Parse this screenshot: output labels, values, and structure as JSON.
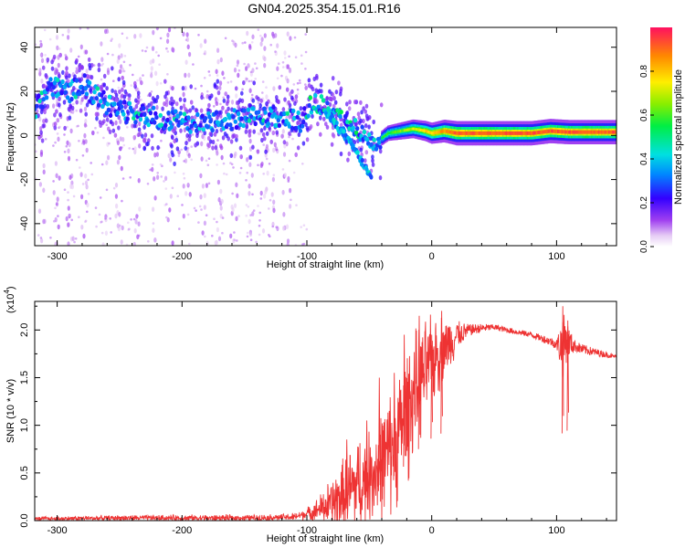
{
  "title": "GN04.2025.354.15.01.R16",
  "chart_data": [
    {
      "type": "heatmap",
      "name": "spectrogram",
      "xlabel": "Height of straight line (km)",
      "ylabel": "Frequency (Hz)",
      "xlim": [
        -318,
        148
      ],
      "ylim": [
        -50,
        49
      ],
      "xticks": [
        -300,
        -200,
        -100,
        0,
        100
      ],
      "yticks": [
        -40,
        -20,
        0,
        20,
        40
      ],
      "xticklabels": [
        "-300",
        "-200",
        "-100",
        "0",
        "100"
      ],
      "yticklabels": [
        "-40",
        "-20",
        "0",
        "20",
        "40"
      ],
      "ridge": {
        "x": [
          -318,
          -305,
          -290,
          -280,
          -270,
          -255,
          -240,
          -220,
          -200,
          -180,
          -160,
          -140,
          -120,
          -105,
          -95,
          -85,
          -75,
          -65,
          -55,
          -48,
          -42,
          -35,
          -25,
          -15,
          -5,
          0,
          10,
          20,
          40,
          60,
          80,
          95,
          110,
          130,
          148
        ],
        "y": [
          12,
          22,
          20,
          24,
          18,
          12,
          10,
          8,
          6,
          6,
          7,
          8,
          9,
          6,
          15,
          14,
          8,
          4,
          2,
          -3,
          -2,
          1,
          2,
          3,
          2,
          1,
          2,
          1,
          1,
          1,
          1,
          2,
          1.5,
          1.5,
          1.5
        ]
      },
      "branch": {
        "x": [
          -85,
          -78,
          -70,
          -62,
          -56,
          -52,
          -48
        ],
        "y": [
          10,
          6,
          0,
          -6,
          -12,
          -16,
          -20
        ]
      },
      "colorbar": {
        "label": "Normalized spectral amplitude",
        "range": [
          0,
          1
        ],
        "ticks": [
          0.0,
          0.2,
          0.4,
          0.6,
          0.8
        ],
        "ticklabels": [
          "0.0",
          "0.2",
          "0.4",
          "0.6",
          "0.8"
        ]
      }
    },
    {
      "type": "line",
      "name": "snr",
      "xlabel": "Height of straight line (km)",
      "ylabel": "SNR (10 * v/v)",
      "ylabel_scale": "(x10",
      "ylabel_scale_exp": "4",
      "ylabel_scale_close": ")",
      "xlim": [
        -318,
        148
      ],
      "ylim": [
        0,
        2.3
      ],
      "xticks": [
        -300,
        -200,
        -100,
        0,
        100
      ],
      "yticks": [
        0.0,
        0.5,
        1.0,
        1.5,
        2.0
      ],
      "xticklabels": [
        "-300",
        "-200",
        "-100",
        "0",
        "100"
      ],
      "yticklabels": [
        "0.0",
        "0.5",
        "1.0",
        "1.5",
        "2.0"
      ],
      "color": "#ee3333",
      "envelope": {
        "x": [
          -318,
          -250,
          -200,
          -150,
          -110,
          -95,
          -80,
          -70,
          -60,
          -50,
          -40,
          -30,
          -20,
          -10,
          0,
          10,
          20,
          30,
          40,
          50,
          60,
          80,
          95,
          100,
          105,
          108,
          112,
          120,
          130,
          140,
          148
        ],
        "y": [
          0.02,
          0.03,
          0.03,
          0.03,
          0.04,
          0.1,
          0.2,
          0.3,
          0.42,
          0.5,
          0.65,
          0.85,
          1.2,
          1.5,
          1.72,
          1.85,
          1.95,
          2.0,
          2.02,
          2.03,
          2.0,
          1.95,
          1.88,
          1.85,
          1.83,
          1.9,
          1.85,
          1.8,
          1.77,
          1.74,
          1.72
        ]
      },
      "noise": {
        "x": [
          -318,
          -200,
          -120,
          -100,
          -90,
          -80,
          -70,
          -60,
          -50,
          -40,
          -30,
          -20,
          -10,
          0,
          10,
          20,
          30,
          50,
          80,
          100,
          105,
          110,
          115,
          148
        ],
        "amp": [
          0.02,
          0.03,
          0.03,
          0.05,
          0.12,
          0.25,
          0.35,
          0.45,
          0.4,
          0.5,
          0.55,
          0.6,
          0.5,
          0.4,
          0.3,
          0.15,
          0.06,
          0.03,
          0.03,
          0.05,
          0.35,
          0.15,
          0.06,
          0.02
        ]
      },
      "peaks": [
        {
          "x": -68,
          "y": 0.85
        },
        {
          "x": -52,
          "y": 1.05
        },
        {
          "x": -42,
          "y": 1.5
        },
        {
          "x": -30,
          "y": 1.55
        },
        {
          "x": -22,
          "y": 1.95
        },
        {
          "x": -10,
          "y": 2.15
        },
        {
          "x": 0,
          "y": 1.95
        },
        {
          "x": 8,
          "y": 2.2
        },
        {
          "x": 105,
          "y": 2.25
        },
        {
          "x": 109,
          "y": 2.1
        }
      ]
    }
  ]
}
